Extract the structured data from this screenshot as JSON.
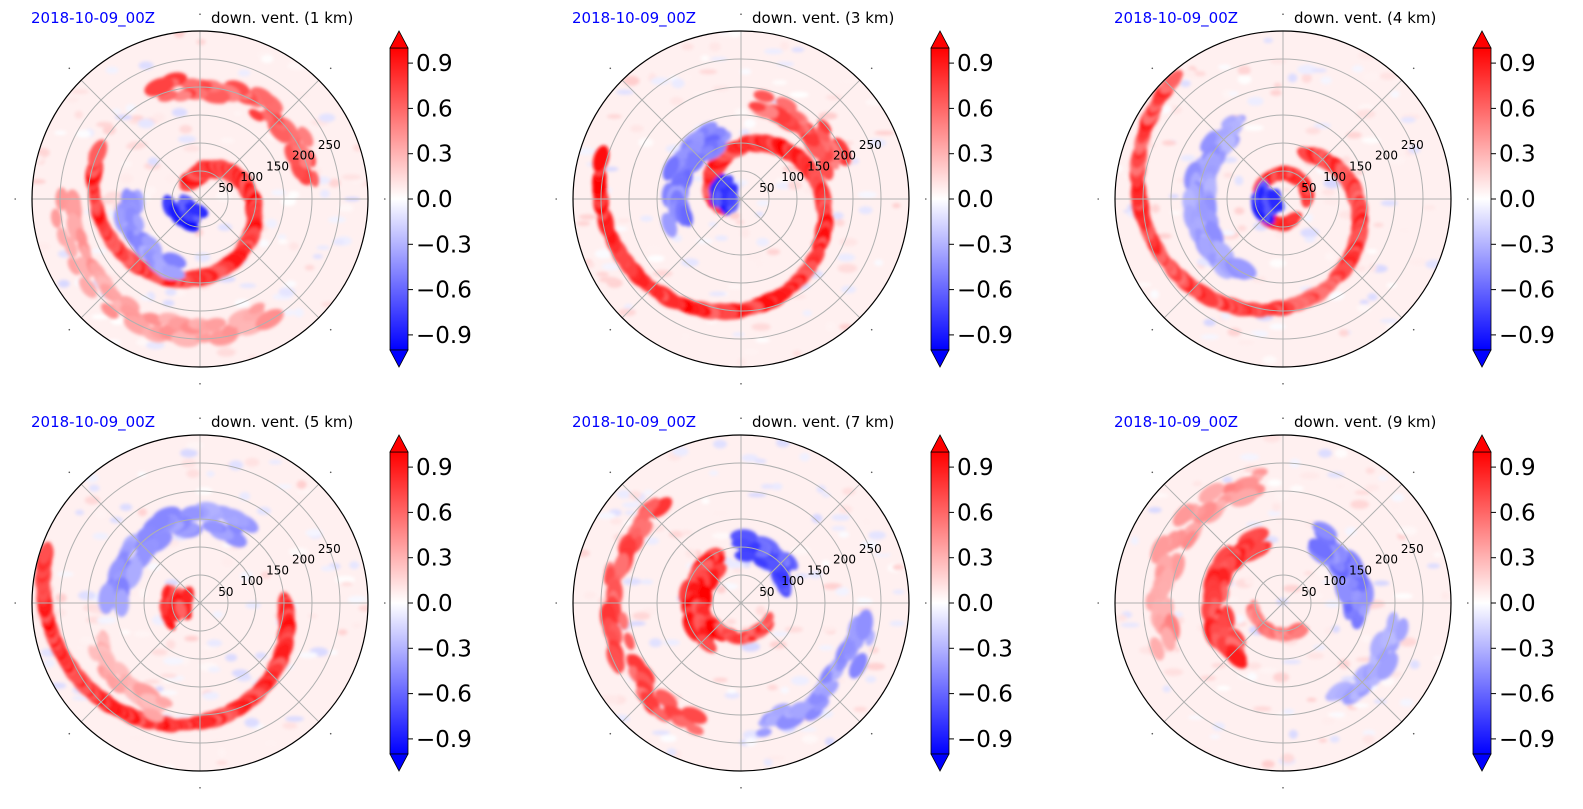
{
  "figure": {
    "date_label": "2018-10-09_00Z",
    "colors": {
      "date_label": "#0000ff",
      "negative": "#0000ff",
      "positive": "#ff0000",
      "neutral": "#ffffff"
    }
  },
  "chart_data": [
    {
      "type": "heatmap",
      "title": "down. vent. (1 km)",
      "subtitle": "2018-10-09_00Z",
      "projection": "polar",
      "radial_ticks": [
        "50",
        "100",
        "150",
        "200",
        "250"
      ],
      "radial_range": [
        0,
        300
      ],
      "grid": true,
      "colorbar": {
        "range": [
          -1.0,
          1.0
        ],
        "ticks": [
          "0.9",
          "0.6",
          "0.3",
          "0.0",
          "−0.3",
          "−0.6",
          "−0.9"
        ],
        "extend": "both",
        "cmap": "bwr"
      },
      "features": [
        {
          "kind": "spiral",
          "sign": 1,
          "r0": 30,
          "r1": 200,
          "theta0": 120,
          "turns": 0.9,
          "intensity": 1.0
        },
        {
          "kind": "band",
          "sign": 1,
          "r": 200,
          "thetaFrom": 10,
          "thetaTo": 110,
          "intensity": 0.8
        },
        {
          "kind": "blob",
          "sign": -1,
          "r": 40,
          "theta": 220,
          "intensity": 1.0
        },
        {
          "kind": "band",
          "sign": -1,
          "r": 130,
          "thetaFrom": 180,
          "thetaTo": 250,
          "intensity": 0.5
        },
        {
          "kind": "band",
          "sign": 1,
          "r": 240,
          "thetaFrom": 180,
          "thetaTo": 300,
          "intensity": 0.45
        }
      ]
    },
    {
      "type": "heatmap",
      "title": "down. vent. (3 km)",
      "subtitle": "2018-10-09_00Z",
      "projection": "polar",
      "radial_ticks": [
        "50",
        "100",
        "150",
        "200",
        "250"
      ],
      "radial_range": [
        0,
        300
      ],
      "grid": true,
      "colorbar": {
        "range": [
          -1.0,
          1.0
        ],
        "ticks": [
          "0.9",
          "0.6",
          "0.3",
          "0.0",
          "−0.3",
          "−0.6",
          "−0.9"
        ],
        "extend": "both",
        "cmap": "bwr"
      },
      "features": [
        {
          "kind": "spiral",
          "sign": 1,
          "r0": 30,
          "r1": 260,
          "theta0": 200,
          "turns": 1.1,
          "intensity": 1.0
        },
        {
          "kind": "blob",
          "sign": -1,
          "r": 35,
          "theta": 170,
          "intensity": 1.0
        },
        {
          "kind": "band",
          "sign": -1,
          "r": 120,
          "thetaFrom": 110,
          "thetaTo": 200,
          "intensity": 0.6
        },
        {
          "kind": "band",
          "sign": 1,
          "r": 180,
          "thetaFrom": 20,
          "thetaTo": 80,
          "intensity": 0.8
        }
      ]
    },
    {
      "type": "heatmap",
      "title": "down. vent. (4 km)",
      "subtitle": "2018-10-09_00Z",
      "projection": "polar",
      "radial_ticks": [
        "50",
        "100",
        "150",
        "200",
        "250"
      ],
      "radial_range": [
        0,
        300
      ],
      "grid": true,
      "colorbar": {
        "range": [
          -1.0,
          1.0
        ],
        "ticks": [
          "0.9",
          "0.6",
          "0.3",
          "0.0",
          "−0.3",
          "−0.6",
          "−0.9"
        ],
        "extend": "both",
        "cmap": "bwr"
      },
      "features": [
        {
          "kind": "ring",
          "sign": 1,
          "r": 45,
          "thetaFrom": 0,
          "thetaTo": 300,
          "intensity": 1.0
        },
        {
          "kind": "spiral",
          "sign": 1,
          "r0": 90,
          "r1": 290,
          "theta0": 60,
          "turns": 0.8,
          "intensity": 0.9
        },
        {
          "kind": "band",
          "sign": -1,
          "r": 150,
          "thetaFrom": 120,
          "thetaTo": 240,
          "intensity": 0.45
        },
        {
          "kind": "blob",
          "sign": -1,
          "r": 30,
          "theta": 190,
          "intensity": 1.0
        }
      ]
    },
    {
      "type": "heatmap",
      "title": "down. vent. (5 km)",
      "subtitle": "2018-10-09_00Z",
      "projection": "polar",
      "radial_ticks": [
        "50",
        "100",
        "150",
        "200",
        "250"
      ],
      "radial_range": [
        0,
        300
      ],
      "grid": true,
      "colorbar": {
        "range": [
          -1.0,
          1.0
        ],
        "ticks": [
          "0.9",
          "0.6",
          "0.3",
          "0.0",
          "−0.3",
          "−0.6",
          "−0.9"
        ],
        "extend": "both",
        "cmap": "bwr"
      },
      "features": [
        {
          "kind": "blob",
          "sign": 1,
          "r": 45,
          "theta": 190,
          "intensity": 1.0
        },
        {
          "kind": "spiral",
          "sign": 1,
          "r0": 150,
          "r1": 290,
          "theta0": 0,
          "turns": 0.55,
          "intensity": 1.0
        },
        {
          "kind": "band",
          "sign": -1,
          "r": 150,
          "thetaFrom": 60,
          "thetaTo": 180,
          "intensity": 0.5
        },
        {
          "kind": "band",
          "sign": 1,
          "r": 200,
          "thetaFrom": 200,
          "thetaTo": 250,
          "intensity": 0.4
        }
      ]
    },
    {
      "type": "heatmap",
      "title": "down. vent. (7 km)",
      "subtitle": "2018-10-09_00Z",
      "projection": "polar",
      "radial_ticks": [
        "50",
        "100",
        "150",
        "200",
        "250"
      ],
      "radial_range": [
        0,
        300
      ],
      "grid": true,
      "colorbar": {
        "range": [
          -1.0,
          1.0
        ],
        "ticks": [
          "0.9",
          "0.6",
          "0.3",
          "0.0",
          "−0.3",
          "−0.6",
          "−0.9"
        ],
        "extend": "both",
        "cmap": "bwr"
      },
      "features": [
        {
          "kind": "band",
          "sign": 1,
          "r": 80,
          "thetaFrom": 120,
          "thetaTo": 230,
          "intensity": 1.0
        },
        {
          "kind": "band",
          "sign": 1,
          "r": 230,
          "thetaFrom": 130,
          "thetaTo": 250,
          "intensity": 0.8
        },
        {
          "kind": "band",
          "sign": -1,
          "r": 100,
          "thetaFrom": 20,
          "thetaTo": 90,
          "intensity": 0.8
        },
        {
          "kind": "band",
          "sign": -1,
          "r": 220,
          "thetaFrom": 280,
          "thetaTo": 350,
          "intensity": 0.5
        },
        {
          "kind": "ring",
          "sign": 1,
          "r": 60,
          "thetaFrom": 230,
          "thetaTo": 330,
          "intensity": 0.9
        }
      ]
    },
    {
      "type": "heatmap",
      "title": "down. vent. (9 km)",
      "subtitle": "2018-10-09_00Z",
      "projection": "polar",
      "radial_ticks": [
        "50",
        "100",
        "150",
        "200",
        "250"
      ],
      "radial_range": [
        0,
        300
      ],
      "grid": true,
      "colorbar": {
        "range": [
          -1.0,
          1.0
        ],
        "ticks": [
          "0.9",
          "0.6",
          "0.3",
          "0.0",
          "−0.3",
          "−0.6",
          "−0.9"
        ],
        "extend": "both",
        "cmap": "bwr"
      },
      "features": [
        {
          "kind": "band",
          "sign": 1,
          "r": 120,
          "thetaFrom": 110,
          "thetaTo": 230,
          "intensity": 0.9
        },
        {
          "kind": "band",
          "sign": 1,
          "r": 220,
          "thetaFrom": 100,
          "thetaTo": 200,
          "intensity": 0.5
        },
        {
          "kind": "band",
          "sign": -1,
          "r": 130,
          "thetaFrom": 350,
          "thetaTo": 60,
          "intensity": 0.6
        },
        {
          "kind": "band",
          "sign": -1,
          "r": 200,
          "thetaFrom": 300,
          "thetaTo": 350,
          "intensity": 0.4
        },
        {
          "kind": "ring",
          "sign": 1,
          "r": 55,
          "thetaFrom": 190,
          "thetaTo": 300,
          "intensity": 0.6
        }
      ]
    }
  ]
}
